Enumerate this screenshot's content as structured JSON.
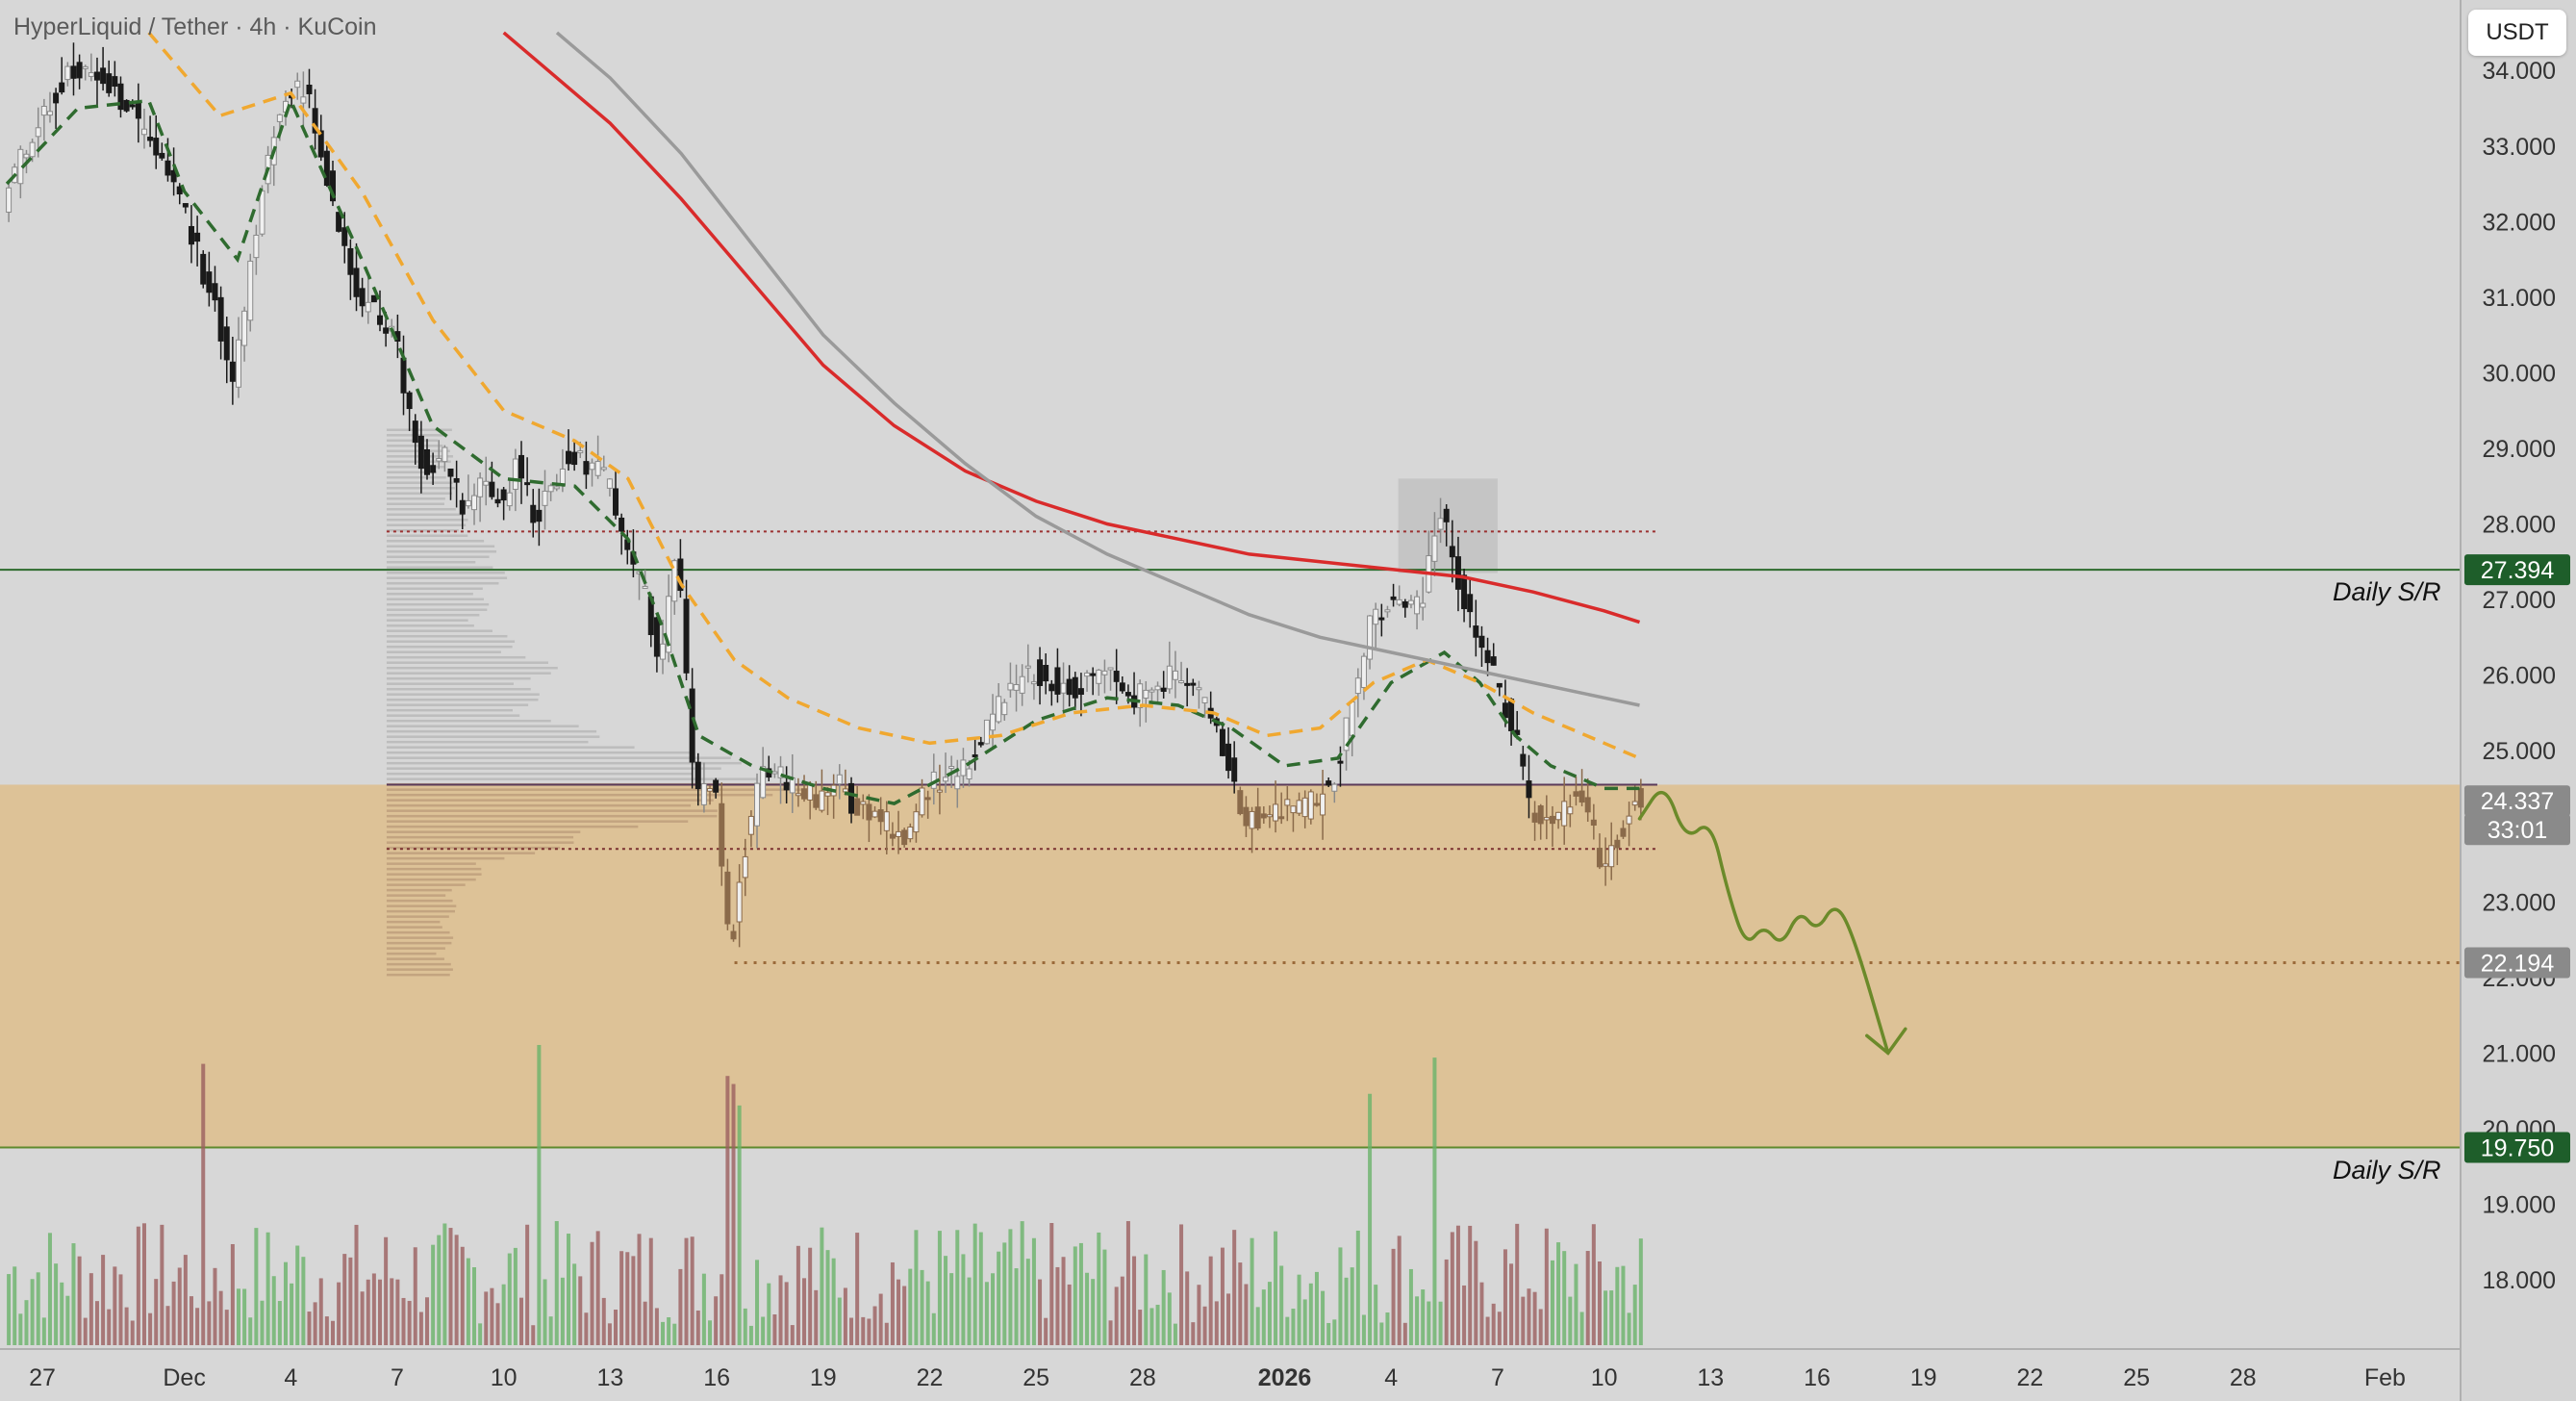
{
  "header": {
    "symbol_title": "HyperLiquid / Tether · 4h · KuCoin",
    "unit_button": "USDT"
  },
  "chart_data": {
    "type": "candlestick",
    "title": "HyperLiquid / Tether · 4h · KuCoin",
    "y_unit": "USDT",
    "ylim": [
      17.0,
      34.5
    ],
    "y_ticks": [
      "34.000",
      "33.000",
      "32.000",
      "31.000",
      "30.000",
      "29.000",
      "28.000",
      "27.000",
      "26.000",
      "25.000",
      "24.000",
      "23.000",
      "22.000",
      "21.000",
      "20.000",
      "19.000",
      "18.000"
    ],
    "x_ticks": [
      "27",
      "Dec",
      "4",
      "7",
      "10",
      "13",
      "16",
      "19",
      "22",
      "25",
      "28",
      "2026",
      "4",
      "7",
      "10",
      "13",
      "16",
      "19",
      "22",
      "25",
      "28",
      "Feb"
    ],
    "x_tick_days": [
      0,
      4,
      7,
      10,
      13,
      16,
      19,
      22,
      25,
      28,
      31,
      35,
      38,
      41,
      44,
      47,
      50,
      53,
      56,
      59,
      62,
      66
    ],
    "price_marks": [
      {
        "label": "27.394",
        "value": 27.394,
        "color": "#1e5e2a"
      },
      {
        "label": "24.337",
        "value": 24.337,
        "color": "#8a8a8a"
      },
      {
        "label": "33:01",
        "value": 24.337,
        "color": "#8a8a8a"
      },
      {
        "label": "22.194",
        "value": 22.194,
        "color": "#8a8a8a"
      },
      {
        "label": "19.750",
        "value": 19.75,
        "color": "#1e5e2a"
      }
    ],
    "support_resistance": [
      {
        "label": "Daily S/R",
        "value": 27.394
      },
      {
        "label": "Daily S/R",
        "value": 19.75
      }
    ],
    "zone": {
      "from": 19.75,
      "to": 24.55,
      "color": "#e0b97c"
    },
    "key_levels": [
      27.9,
      24.55,
      23.7,
      22.194
    ],
    "close_path": [
      [
        -1,
        32.3
      ],
      [
        0,
        33.4
      ],
      [
        1,
        34.0
      ],
      [
        2,
        33.8
      ],
      [
        3,
        33.2
      ],
      [
        4,
        32.3
      ],
      [
        5,
        30.8
      ],
      [
        5.5,
        29.8
      ],
      [
        6,
        31.5
      ],
      [
        6.5,
        33.0
      ],
      [
        7,
        33.6
      ],
      [
        7.5,
        33.8
      ],
      [
        8,
        32.9
      ],
      [
        8.5,
        31.8
      ],
      [
        9,
        31.0
      ],
      [
        10,
        30.6
      ],
      [
        10.5,
        29.3
      ],
      [
        11,
        28.6
      ],
      [
        11.5,
        28.9
      ],
      [
        12,
        28.1
      ],
      [
        12.5,
        28.6
      ],
      [
        13,
        28.3
      ],
      [
        13.5,
        28.8
      ],
      [
        14,
        28.1
      ],
      [
        15,
        29.0
      ],
      [
        16,
        28.6
      ],
      [
        16.5,
        27.8
      ],
      [
        17,
        27.2
      ],
      [
        17.5,
        26.2
      ],
      [
        18,
        27.6
      ],
      [
        18.5,
        24.4
      ],
      [
        19,
        24.7
      ],
      [
        19.5,
        22.4
      ],
      [
        20,
        24.0
      ],
      [
        20.5,
        24.8
      ],
      [
        21,
        24.6
      ],
      [
        22,
        24.3
      ],
      [
        22.5,
        24.7
      ],
      [
        23,
        24.2
      ],
      [
        24,
        24.0
      ],
      [
        24.5,
        23.8
      ],
      [
        25,
        24.5
      ],
      [
        26,
        24.7
      ],
      [
        26.5,
        25.2
      ],
      [
        27,
        25.6
      ],
      [
        28,
        26.1
      ],
      [
        29,
        25.8
      ],
      [
        30,
        26.0
      ],
      [
        31,
        25.7
      ],
      [
        32,
        26.0
      ],
      [
        33,
        25.6
      ],
      [
        33.5,
        24.8
      ],
      [
        34,
        24.1
      ],
      [
        35,
        24.2
      ],
      [
        36,
        24.3
      ],
      [
        36.5,
        24.7
      ],
      [
        37,
        25.6
      ],
      [
        37.5,
        26.6
      ],
      [
        38,
        27.0
      ],
      [
        38.5,
        26.8
      ],
      [
        39,
        27.0
      ],
      [
        39.5,
        28.2
      ],
      [
        40,
        27.2
      ],
      [
        40.5,
        26.4
      ],
      [
        41,
        26.0
      ],
      [
        41.5,
        25.4
      ],
      [
        42,
        24.3
      ],
      [
        42.5,
        24.0
      ],
      [
        43,
        24.2
      ],
      [
        43.5,
        24.5
      ],
      [
        44,
        23.5
      ],
      [
        44.5,
        23.9
      ],
      [
        45,
        24.34
      ]
    ],
    "moving_averages": [
      {
        "color": "#2f6b2f",
        "style": "dash",
        "points": [
          [
            -1,
            32.5
          ],
          [
            1,
            33.5
          ],
          [
            3,
            33.6
          ],
          [
            4,
            32.4
          ],
          [
            5.5,
            31.5
          ],
          [
            7,
            33.6
          ],
          [
            9,
            31.5
          ],
          [
            11,
            29.3
          ],
          [
            13,
            28.6
          ],
          [
            15,
            28.5
          ],
          [
            16.5,
            27.8
          ],
          [
            17.5,
            26.6
          ],
          [
            18.5,
            25.2
          ],
          [
            20,
            24.8
          ],
          [
            22,
            24.5
          ],
          [
            24,
            24.3
          ],
          [
            26,
            24.8
          ],
          [
            28,
            25.4
          ],
          [
            30,
            25.7
          ],
          [
            32,
            25.6
          ],
          [
            33.5,
            25.3
          ],
          [
            35,
            24.8
          ],
          [
            36.5,
            24.9
          ],
          [
            38,
            25.9
          ],
          [
            39.5,
            26.3
          ],
          [
            40.5,
            25.9
          ],
          [
            41.5,
            25.2
          ],
          [
            42.5,
            24.8
          ],
          [
            44,
            24.5
          ],
          [
            45,
            24.5
          ]
        ]
      },
      {
        "color": "#f0a830",
        "style": "dash",
        "points": [
          [
            3,
            34.5
          ],
          [
            5,
            33.4
          ],
          [
            7,
            33.7
          ],
          [
            9,
            32.4
          ],
          [
            11,
            30.7
          ],
          [
            13,
            29.5
          ],
          [
            15,
            29.1
          ],
          [
            16.5,
            28.6
          ],
          [
            18,
            27.2
          ],
          [
            19.5,
            26.2
          ],
          [
            21,
            25.7
          ],
          [
            23,
            25.3
          ],
          [
            25,
            25.1
          ],
          [
            27,
            25.2
          ],
          [
            29,
            25.5
          ],
          [
            31,
            25.6
          ],
          [
            33,
            25.5
          ],
          [
            34.5,
            25.2
          ],
          [
            36,
            25.3
          ],
          [
            37.5,
            25.9
          ],
          [
            39,
            26.2
          ],
          [
            40.5,
            25.9
          ],
          [
            42,
            25.5
          ],
          [
            43.5,
            25.2
          ],
          [
            45,
            24.9
          ]
        ]
      },
      {
        "color": "#d92b2b",
        "style": "solid",
        "points": [
          [
            13,
            34.5
          ],
          [
            14,
            34.1
          ],
          [
            16,
            33.3
          ],
          [
            18,
            32.3
          ],
          [
            20,
            31.2
          ],
          [
            22,
            30.1
          ],
          [
            24,
            29.3
          ],
          [
            26,
            28.7
          ],
          [
            28,
            28.3
          ],
          [
            30,
            28.0
          ],
          [
            32,
            27.8
          ],
          [
            34,
            27.6
          ],
          [
            36,
            27.5
          ],
          [
            38,
            27.4
          ],
          [
            40,
            27.3
          ],
          [
            42,
            27.1
          ],
          [
            44,
            26.85
          ],
          [
            45,
            26.7
          ]
        ]
      },
      {
        "color": "#9a9a9a",
        "style": "solid",
        "points": [
          [
            14.5,
            34.5
          ],
          [
            16,
            33.9
          ],
          [
            18,
            32.9
          ],
          [
            20,
            31.7
          ],
          [
            22,
            30.5
          ],
          [
            24,
            29.6
          ],
          [
            26,
            28.8
          ],
          [
            28,
            28.1
          ],
          [
            30,
            27.6
          ],
          [
            32,
            27.2
          ],
          [
            34,
            26.8
          ],
          [
            36,
            26.5
          ],
          [
            38,
            26.3
          ],
          [
            40,
            26.1
          ],
          [
            42,
            25.9
          ],
          [
            44,
            25.7
          ],
          [
            45,
            25.6
          ]
        ]
      }
    ],
    "forecast_path": [
      [
        45,
        24.1
      ],
      [
        45.7,
        24.6
      ],
      [
        46.3,
        23.8
      ],
      [
        47,
        24.1
      ],
      [
        47.5,
        23.1
      ],
      [
        48,
        22.4
      ],
      [
        48.5,
        22.7
      ],
      [
        49,
        22.4
      ],
      [
        49.5,
        22.9
      ],
      [
        50,
        22.6
      ],
      [
        50.5,
        23.0
      ],
      [
        51,
        22.6
      ],
      [
        52,
        21.0
      ]
    ],
    "volume": {
      "color_up": "#6ab36a",
      "color_down": "#9b5f5f",
      "peak_days": [
        4.5,
        14,
        19.2,
        19.5,
        37.3,
        39.2
      ]
    }
  }
}
